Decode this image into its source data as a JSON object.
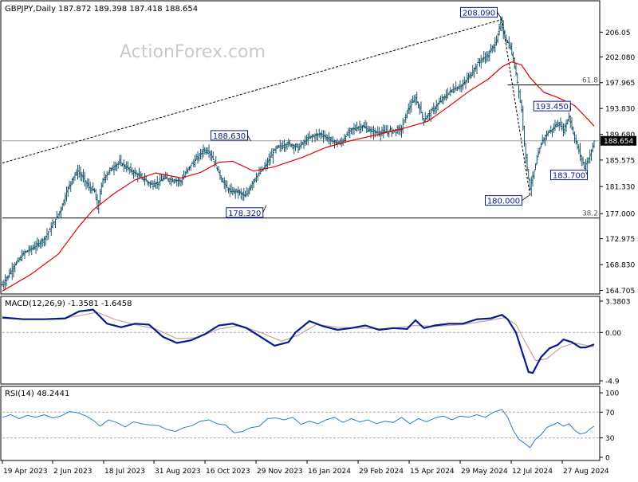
{
  "header": {
    "main": "GBPJPY,Daily  187.872 189.398 187.418 188.654",
    "macd": "MACD(12,26,9) -1.3581 -1.6458",
    "rsi": "RSI(14) 48.2441"
  },
  "watermark": "ActionForex.com",
  "colors": {
    "price_bars": "#1e5a6e",
    "sma": "#e00000",
    "macd_line": "#0a1a8c",
    "macd_signal": "#c8a4a4",
    "rsi_line": "#2b7bcf",
    "axis": "#000000",
    "annotation_box": "#0a1a8c"
  },
  "chart_data": [
    {
      "type": "line",
      "name": "GBPJPY price (daily bars)",
      "y_axis_ticks": [
        "206.05",
        "202.080",
        "197.965",
        "193.830",
        "189.680",
        "185.575",
        "181.330",
        "177.000",
        "172.975",
        "168.830",
        "164.705"
      ],
      "current_price_label": "188.654",
      "x_axis_labels": [
        "19 Apr 2023",
        "2 Jun 2023",
        "18 Jul 2023",
        "31 Aug 2023",
        "16 Oct 2023",
        "29 Nov 2023",
        "16 Jan 2024",
        "29 Feb 2024",
        "15 Apr 2024",
        "29 May 2024",
        "12 Jul 2024",
        "27 Aug 2024"
      ],
      "ylim": [
        164.7,
        209.0
      ],
      "close": [
        [
          0,
          165.6
        ],
        [
          8,
          168.5
        ],
        [
          16,
          170.8
        ],
        [
          24,
          171.8
        ],
        [
          30,
          173.0
        ],
        [
          36,
          175.2
        ],
        [
          42,
          177.8
        ],
        [
          46,
          180.5
        ],
        [
          50,
          182.6
        ],
        [
          54,
          183.8
        ],
        [
          58,
          182.6
        ],
        [
          62,
          181.2
        ],
        [
          66,
          180.6
        ],
        [
          68,
          177.8
        ],
        [
          72,
          182.5
        ],
        [
          78,
          184.2
        ],
        [
          84,
          185.2
        ],
        [
          90,
          184.2
        ],
        [
          96,
          183.3
        ],
        [
          102,
          182.4
        ],
        [
          106,
          181.7
        ],
        [
          110,
          181.8
        ],
        [
          116,
          182.7
        ],
        [
          122,
          182.4
        ],
        [
          128,
          182.2
        ],
        [
          134,
          184.5
        ],
        [
          140,
          186.0
        ],
        [
          144,
          187.2
        ],
        [
          148,
          187.0
        ],
        [
          152,
          185.2
        ],
        [
          158,
          182.0
        ],
        [
          163,
          180.5
        ],
        [
          168,
          180.6
        ],
        [
          174,
          179.7
        ],
        [
          180,
          182.4
        ],
        [
          188,
          184.5
        ],
        [
          196,
          187.5
        ],
        [
          205,
          188.2
        ],
        [
          212,
          187.6
        ],
        [
          220,
          189.2
        ],
        [
          228,
          189.8
        ],
        [
          236,
          188.6
        ],
        [
          242,
          188.2
        ],
        [
          250,
          190.5
        ],
        [
          258,
          191.0
        ],
        [
          264,
          190.1
        ],
        [
          272,
          190.0
        ],
        [
          280,
          190.3
        ],
        [
          286,
          190.5
        ],
        [
          290,
          193.5
        ],
        [
          296,
          195.5
        ],
        [
          302,
          192.0
        ],
        [
          308,
          193.5
        ],
        [
          316,
          195.5
        ],
        [
          322,
          196.8
        ],
        [
          330,
          197.6
        ],
        [
          336,
          199.5
        ],
        [
          342,
          201.5
        ],
        [
          348,
          202.3
        ],
        [
          354,
          204.8
        ],
        [
          357,
          207.6
        ],
        [
          360,
          205.2
        ],
        [
          364,
          203.5
        ],
        [
          368,
          199.5
        ],
        [
          372,
          193.5
        ],
        [
          375,
          186.0
        ],
        [
          378,
          181.0
        ],
        [
          382,
          184.8
        ],
        [
          386,
          188.3
        ],
        [
          390,
          189.8
        ],
        [
          394,
          190.5
        ],
        [
          398,
          191.5
        ],
        [
          402,
          190.4
        ],
        [
          406,
          192.6
        ],
        [
          410,
          189.0
        ],
        [
          414,
          186.3
        ],
        [
          417,
          184.5
        ],
        [
          421,
          186.3
        ],
        [
          424,
          188.6
        ]
      ],
      "sma": [
        [
          0,
          164.6
        ],
        [
          20,
          167.2
        ],
        [
          40,
          170.5
        ],
        [
          55,
          175.0
        ],
        [
          65,
          177.6
        ],
        [
          80,
          180.2
        ],
        [
          95,
          182.4
        ],
        [
          110,
          183.5
        ],
        [
          128,
          182.7
        ],
        [
          142,
          183.6
        ],
        [
          155,
          185.2
        ],
        [
          165,
          185.4
        ],
        [
          180,
          183.8
        ],
        [
          195,
          184.5
        ],
        [
          215,
          186.0
        ],
        [
          232,
          187.6
        ],
        [
          250,
          188.7
        ],
        [
          270,
          189.7
        ],
        [
          290,
          190.8
        ],
        [
          305,
          191.8
        ],
        [
          320,
          194.2
        ],
        [
          335,
          196.7
        ],
        [
          348,
          198.5
        ],
        [
          358,
          200.5
        ],
        [
          365,
          201.3
        ],
        [
          372,
          200.8
        ],
        [
          378,
          198.8
        ],
        [
          388,
          196.4
        ],
        [
          398,
          195.6
        ],
        [
          410,
          194.3
        ],
        [
          420,
          192.0
        ],
        [
          424,
          191.0
        ]
      ],
      "annotations": [
        {
          "label": "208.090",
          "x": 358,
          "y": 208.09
        },
        {
          "label": "188.630",
          "x": 178,
          "y": 188.63
        },
        {
          "label": "178.320",
          "x": 189,
          "y": 178.32
        },
        {
          "label": "193.450",
          "x": 407,
          "y": 193.45
        },
        {
          "label": "183.700",
          "x": 418,
          "y": 183.7
        },
        {
          "label": "180.000",
          "x": 378,
          "y": 180.0
        }
      ],
      "fib_levels": [
        {
          "label": "61.8",
          "value": 197.6
        },
        {
          "label": "38.2",
          "value": 176.3
        }
      ],
      "trendlines": [
        {
          "style": "dashed",
          "from": [
            0,
            185.1
          ],
          "to": [
            358,
            208.09
          ]
        },
        {
          "style": "dashed",
          "from": [
            358,
            208.09
          ],
          "to": [
            378,
            180.0
          ]
        }
      ],
      "horizontal_line": 188.654
    },
    {
      "type": "line",
      "name": "MACD(12,26,9)",
      "y_axis_ticks": [
        "3.3803",
        "0.00",
        "-4.9"
      ],
      "ylim": [
        -5.5,
        3.38
      ],
      "macd": [
        [
          0,
          1.7
        ],
        [
          15,
          1.5
        ],
        [
          30,
          1.5
        ],
        [
          45,
          1.6
        ],
        [
          55,
          2.4
        ],
        [
          65,
          2.6
        ],
        [
          75,
          1.0
        ],
        [
          85,
          0.6
        ],
        [
          95,
          1.0
        ],
        [
          105,
          0.9
        ],
        [
          115,
          -0.5
        ],
        [
          125,
          -1.2
        ],
        [
          135,
          -0.9
        ],
        [
          145,
          -0.2
        ],
        [
          155,
          0.8
        ],
        [
          165,
          1.0
        ],
        [
          175,
          0.5
        ],
        [
          185,
          -0.5
        ],
        [
          195,
          -1.5
        ],
        [
          205,
          -1.1
        ],
        [
          210,
          0.0
        ],
        [
          220,
          1.3
        ],
        [
          230,
          0.7
        ],
        [
          240,
          0.3
        ],
        [
          250,
          0.5
        ],
        [
          260,
          0.8
        ],
        [
          270,
          0.3
        ],
        [
          280,
          0.5
        ],
        [
          290,
          0.4
        ],
        [
          296,
          1.4
        ],
        [
          302,
          0.5
        ],
        [
          310,
          0.8
        ],
        [
          320,
          1.0
        ],
        [
          330,
          1.0
        ],
        [
          340,
          1.5
        ],
        [
          350,
          1.6
        ],
        [
          358,
          2.0
        ],
        [
          362,
          1.5
        ],
        [
          368,
          0.0
        ],
        [
          372,
          -2.0
        ],
        [
          377,
          -4.5
        ],
        [
          380,
          -4.6
        ],
        [
          386,
          -2.8
        ],
        [
          392,
          -1.8
        ],
        [
          398,
          -1.4
        ],
        [
          402,
          -0.8
        ],
        [
          408,
          -1.1
        ],
        [
          414,
          -1.7
        ],
        [
          418,
          -1.7
        ],
        [
          424,
          -1.36
        ]
      ],
      "signal": [
        [
          0,
          1.6
        ],
        [
          20,
          1.5
        ],
        [
          40,
          1.5
        ],
        [
          55,
          1.9
        ],
        [
          68,
          2.3
        ],
        [
          80,
          1.5
        ],
        [
          95,
          0.9
        ],
        [
          110,
          0.4
        ],
        [
          125,
          -0.7
        ],
        [
          140,
          -0.6
        ],
        [
          155,
          0.4
        ],
        [
          170,
          0.8
        ],
        [
          185,
          0.0
        ],
        [
          200,
          -1.0
        ],
        [
          212,
          -0.3
        ],
        [
          225,
          0.9
        ],
        [
          240,
          0.6
        ],
        [
          255,
          0.5
        ],
        [
          275,
          0.4
        ],
        [
          295,
          0.8
        ],
        [
          310,
          0.7
        ],
        [
          330,
          0.9
        ],
        [
          350,
          1.4
        ],
        [
          360,
          1.7
        ],
        [
          368,
          0.9
        ],
        [
          375,
          -1.2
        ],
        [
          382,
          -3.2
        ],
        [
          390,
          -3.0
        ],
        [
          400,
          -1.7
        ],
        [
          410,
          -1.2
        ],
        [
          424,
          -1.65
        ]
      ]
    },
    {
      "type": "line",
      "name": "RSI(14)",
      "y_axis_ticks": [
        "100",
        "70",
        "30",
        "0"
      ],
      "ylim": [
        0,
        100
      ],
      "rsi": [
        [
          0,
          62
        ],
        [
          6,
          66
        ],
        [
          12,
          60
        ],
        [
          18,
          65
        ],
        [
          24,
          62
        ],
        [
          30,
          66
        ],
        [
          36,
          61
        ],
        [
          42,
          64
        ],
        [
          48,
          71
        ],
        [
          54,
          69
        ],
        [
          60,
          64
        ],
        [
          66,
          56
        ],
        [
          70,
          48
        ],
        [
          76,
          58
        ],
        [
          82,
          54
        ],
        [
          88,
          47
        ],
        [
          94,
          55
        ],
        [
          100,
          52
        ],
        [
          106,
          50
        ],
        [
          112,
          49
        ],
        [
          118,
          43
        ],
        [
          124,
          40
        ],
        [
          130,
          46
        ],
        [
          136,
          49
        ],
        [
          142,
          56
        ],
        [
          148,
          58
        ],
        [
          154,
          52
        ],
        [
          160,
          50
        ],
        [
          166,
          38
        ],
        [
          172,
          40
        ],
        [
          178,
          46
        ],
        [
          184,
          48
        ],
        [
          190,
          60
        ],
        [
          196,
          61
        ],
        [
          202,
          58
        ],
        [
          208,
          62
        ],
        [
          214,
          51
        ],
        [
          220,
          56
        ],
        [
          226,
          52
        ],
        [
          232,
          58
        ],
        [
          238,
          62
        ],
        [
          244,
          54
        ],
        [
          250,
          60
        ],
        [
          256,
          55
        ],
        [
          262,
          58
        ],
        [
          268,
          52
        ],
        [
          274,
          56
        ],
        [
          280,
          54
        ],
        [
          286,
          62
        ],
        [
          292,
          52
        ],
        [
          298,
          60
        ],
        [
          304,
          55
        ],
        [
          310,
          61
        ],
        [
          316,
          64
        ],
        [
          322,
          58
        ],
        [
          328,
          64
        ],
        [
          334,
          62
        ],
        [
          340,
          66
        ],
        [
          346,
          62
        ],
        [
          352,
          70
        ],
        [
          358,
          74
        ],
        [
          362,
          62
        ],
        [
          366,
          42
        ],
        [
          370,
          28
        ],
        [
          374,
          22
        ],
        [
          378,
          15
        ],
        [
          382,
          28
        ],
        [
          386,
          35
        ],
        [
          390,
          46
        ],
        [
          394,
          50
        ],
        [
          398,
          54
        ],
        [
          402,
          48
        ],
        [
          406,
          52
        ],
        [
          410,
          42
        ],
        [
          414,
          36
        ],
        [
          418,
          38
        ],
        [
          421,
          44
        ],
        [
          424,
          48.2
        ]
      ],
      "levels": [
        70,
        30
      ]
    }
  ]
}
